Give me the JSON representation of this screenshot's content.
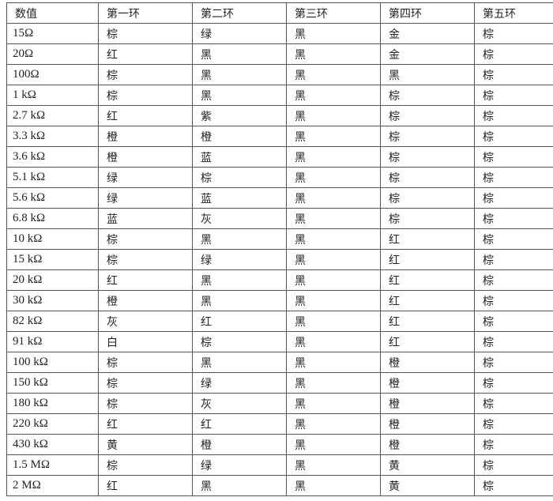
{
  "table": {
    "headers": [
      "数值",
      "第一环",
      "第二环",
      "第三环",
      "第四环",
      "第五环"
    ],
    "rows": [
      [
        "15Ω",
        "棕",
        "绿",
        "黑",
        "金",
        "棕"
      ],
      [
        "20Ω",
        "红",
        "黑",
        "黑",
        "金",
        "棕"
      ],
      [
        "100Ω",
        "棕",
        "黑",
        "黑",
        "黑",
        "棕"
      ],
      [
        "1 kΩ",
        "棕",
        "黑",
        "黑",
        "棕",
        "棕"
      ],
      [
        "2.7 kΩ",
        "红",
        "紫",
        "黑",
        "棕",
        "棕"
      ],
      [
        "3.3 kΩ",
        "橙",
        "橙",
        "黑",
        "棕",
        "棕"
      ],
      [
        "3.6 kΩ",
        "橙",
        "蓝",
        "黑",
        "棕",
        "棕"
      ],
      [
        "5.1 kΩ",
        "绿",
        "棕",
        "黑",
        "棕",
        "棕"
      ],
      [
        "5.6 kΩ",
        "绿",
        "蓝",
        "黑",
        "棕",
        "棕"
      ],
      [
        "6.8 kΩ",
        "蓝",
        "灰",
        "黑",
        "棕",
        "棕"
      ],
      [
        "10 kΩ",
        "棕",
        "黑",
        "黑",
        "红",
        "棕"
      ],
      [
        "15 kΩ",
        "棕",
        "绿",
        "黑",
        "红",
        "棕"
      ],
      [
        "20 kΩ",
        "红",
        "黑",
        "黑",
        "红",
        "棕"
      ],
      [
        "30 kΩ",
        "橙",
        "黑",
        "黑",
        "红",
        "棕"
      ],
      [
        "82 kΩ",
        "灰",
        "红",
        "黑",
        "红",
        "棕"
      ],
      [
        "91 kΩ",
        "白",
        "棕",
        "黑",
        "红",
        "棕"
      ],
      [
        "100 kΩ",
        "棕",
        "黑",
        "黑",
        "橙",
        "棕"
      ],
      [
        "150 kΩ",
        "棕",
        "绿",
        "黑",
        "橙",
        "棕"
      ],
      [
        "180 kΩ",
        "棕",
        "灰",
        "黑",
        "橙",
        "棕"
      ],
      [
        "220 kΩ",
        "红",
        "红",
        "黑",
        "橙",
        "棕"
      ],
      [
        "430 kΩ",
        "黄",
        "橙",
        "黑",
        "橙",
        "棕"
      ],
      [
        "1.5 MΩ",
        "棕",
        "绿",
        "黑",
        "黄",
        "棕"
      ],
      [
        "2 MΩ",
        "红",
        "黑",
        "黑",
        "黄",
        "棕"
      ]
    ]
  }
}
